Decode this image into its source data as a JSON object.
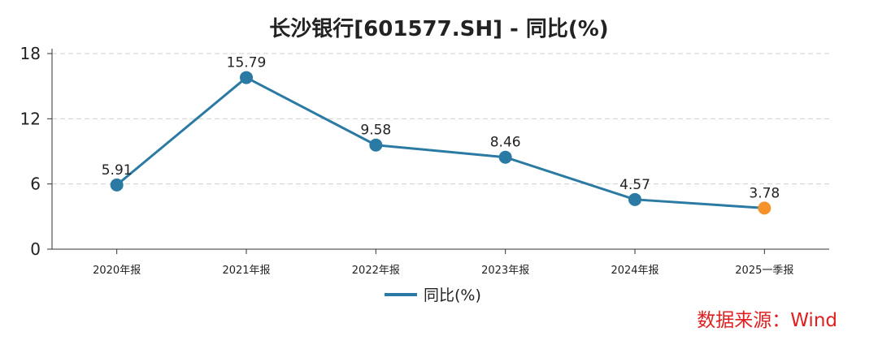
{
  "chart_data": {
    "type": "line",
    "title": "长沙银行[601577.SH] - 同比(%)",
    "categories": [
      "2020年报",
      "2021年报",
      "2022年报",
      "2023年报",
      "2024年报",
      "2025一季报"
    ],
    "series": [
      {
        "name": "同比(%)",
        "values": [
          5.91,
          15.79,
          9.58,
          8.46,
          4.57,
          3.78
        ]
      }
    ],
    "data_labels": [
      "5.91",
      "15.79",
      "9.58",
      "8.46",
      "4.57",
      "3.78"
    ],
    "yticks": [
      "0",
      "6",
      "12",
      "18"
    ],
    "ylim": [
      0,
      18
    ],
    "grid": true,
    "legend": "bottom-center",
    "colors": {
      "line": "#2a7aa3",
      "highlight_point": "#f5922a",
      "grid": "#d0d0d0"
    },
    "source": "数据来源：Wind"
  }
}
